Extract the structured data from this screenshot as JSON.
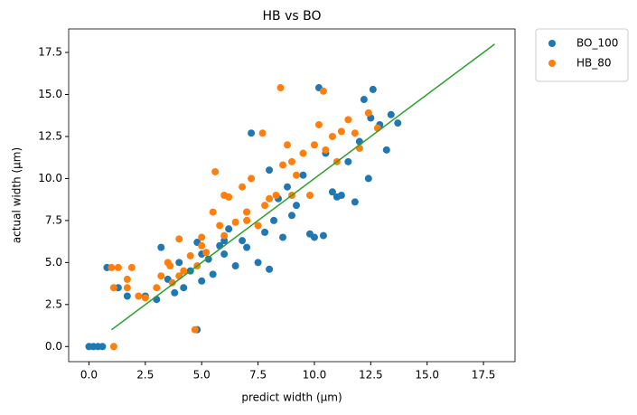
{
  "chart_data": {
    "type": "scatter",
    "title": "HB vs BO",
    "x_label": "predict width (μm)",
    "y_label": "actual width (μm)",
    "xlim": [
      -0.9,
      18.9
    ],
    "ylim": [
      -0.9,
      18.9
    ],
    "xticks": [
      {
        "value": 0,
        "label": "0.0"
      },
      2.5,
      {
        "value": 5,
        "label": "5.0"
      },
      7.5,
      {
        "value": 10,
        "label": "10.0"
      },
      12.5,
      {
        "value": 15,
        "label": "15.0"
      },
      17.5
    ],
    "yticks": [
      {
        "value": 0,
        "label": "0.0"
      },
      2.5,
      {
        "value": 5,
        "label": "5.0"
      },
      7.5,
      {
        "value": 10,
        "label": "10.0"
      },
      12.5,
      {
        "value": 15,
        "label": "15.0"
      },
      17.5
    ],
    "legend": "outside upper right",
    "series": [
      {
        "name": "BO_100",
        "color": "#1f77b4",
        "x": [
          0,
          0.2,
          0.4,
          0.6,
          0.8,
          1.3,
          1.7,
          2.5,
          3,
          3.2,
          3.5,
          3.8,
          4,
          4.2,
          4.5,
          4.8,
          4.8,
          5,
          5.3,
          5.5,
          5.8,
          6,
          6.2,
          6.5,
          6.8,
          7,
          7.2,
          7.5,
          7.8,
          8,
          8.2,
          8.4,
          8.6,
          8.8,
          9,
          9.2,
          9.5,
          9.8,
          10,
          10.2,
          10.4,
          10.5,
          10.8,
          11,
          11.2,
          11.5,
          11.8,
          12,
          12.2,
          12.4,
          12.5,
          12.6,
          12.9,
          13.2,
          13.4,
          13.7,
          8,
          7,
          6,
          5
        ],
        "values": [
          0,
          0,
          0,
          0,
          4.7,
          3.5,
          3.0,
          3.0,
          2.8,
          5.9,
          4.0,
          3.2,
          5.0,
          3.5,
          4.5,
          1.0,
          6.2,
          3.9,
          5.2,
          4.3,
          6.0,
          5.5,
          7.0,
          4.8,
          6.3,
          5.9,
          12.7,
          5.0,
          6.8,
          4.6,
          7.5,
          8.8,
          6.5,
          9.5,
          7.8,
          8.4,
          10.2,
          6.7,
          6.5,
          15.4,
          6.6,
          11.5,
          9.2,
          8.9,
          9.0,
          11.0,
          8.6,
          12.2,
          14.7,
          10.0,
          13.6,
          15.3,
          13.2,
          11.7,
          13.8,
          13.3,
          10.5,
          8.0,
          6.3,
          5.5
        ]
      },
      {
        "name": "HB_80",
        "color": "#ff7f0e",
        "x": [
          1.1,
          1.0,
          1.3,
          1.9,
          1.7,
          1.1,
          2.2,
          2.5,
          1.7,
          3,
          3.2,
          3.5,
          3.7,
          4,
          4.2,
          4.5,
          4.7,
          4.8,
          5,
          5.2,
          5.5,
          5.6,
          5.8,
          6,
          6.2,
          6.5,
          6.8,
          7,
          7.2,
          7.5,
          7.7,
          7.8,
          8,
          8.3,
          8.5,
          8.6,
          8.8,
          9,
          9.2,
          9.5,
          9.8,
          10,
          10.2,
          10.4,
          10.5,
          10.8,
          11,
          11.2,
          11.5,
          11.8,
          12,
          12.4,
          12.8,
          6,
          5,
          4,
          3.6,
          7,
          9
        ],
        "values": [
          0,
          4.7,
          4.7,
          4.7,
          3.5,
          3.5,
          3.0,
          2.9,
          4.0,
          3.5,
          4.2,
          5.0,
          3.8,
          6.4,
          4.5,
          5.4,
          1.0,
          4.8,
          6.0,
          5.6,
          8.0,
          10.4,
          7.2,
          6.6,
          8.9,
          7.4,
          9.5,
          8.0,
          10.0,
          7.2,
          12.7,
          8.4,
          8.8,
          9.0,
          15.4,
          10.8,
          12.0,
          11.0,
          10.2,
          11.5,
          9.0,
          12.0,
          13.2,
          15.2,
          11.7,
          12.5,
          11.0,
          12.8,
          13.5,
          12.7,
          11.8,
          13.9,
          13.0,
          9.0,
          6.5,
          4.2,
          4.8,
          7.5,
          9.0
        ]
      }
    ],
    "fit_line": {
      "color": "#2ca02c",
      "x": [
        1,
        18
      ],
      "values": [
        1,
        18
      ]
    }
  }
}
